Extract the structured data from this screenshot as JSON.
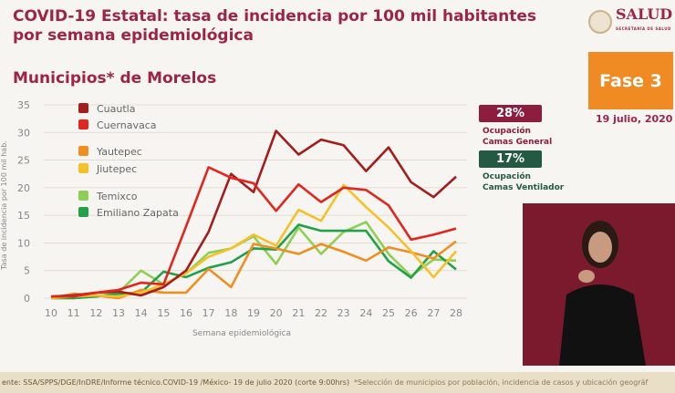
{
  "header": {
    "title": "COVID-19 Estatal: tasa de incidencia por 100 mil habitantes por semana epidemiológica",
    "subtitle": "Municipios* de Morelos"
  },
  "logo": {
    "name": "SALUD",
    "tagline": "SECRETARÍA DE SALUD"
  },
  "phase": {
    "label": "Fase 3",
    "date": "19 julio, 2020"
  },
  "occupancy": [
    {
      "value": "28%",
      "label1": "Ocupación",
      "label2": "Camas General",
      "color": "#8c1d3f"
    },
    {
      "value": "17%",
      "label1": "Ocupación",
      "label2": "Camas Ventilador",
      "color": "#245a44"
    }
  ],
  "footer": {
    "source": "ente: SSA/SPPS/DGE/InDRE/Informe técnico.COVID-19 /México- 19 de julio 2020 (corte 9:00hrs)",
    "note": "*Selección de municipios por población, incidencia de casos y ubicación geográf"
  },
  "chart_data": {
    "type": "line",
    "xlabel": "Semana epidemiológica",
    "ylabel": "Tasa de incidencia por 100 mil hab.",
    "x": [
      10,
      11,
      12,
      13,
      14,
      15,
      16,
      17,
      18,
      19,
      20,
      21,
      22,
      23,
      24,
      25,
      26,
      27,
      28
    ],
    "ylim": [
      0,
      35
    ],
    "yticks": [
      0,
      5,
      10,
      15,
      20,
      25,
      30,
      35
    ],
    "grid": true,
    "legend": "top-left",
    "series": [
      {
        "name": "Cuautla",
        "color": "#a31d1d",
        "values": [
          0.3,
          0.5,
          1,
          1.2,
          0.5,
          2,
          5,
          12,
          22.5,
          19.2,
          30.3,
          26,
          28.7,
          27.7,
          23,
          27.3,
          21,
          18.3,
          22
        ]
      },
      {
        "name": "Cuernavaca",
        "color": "#e0261f",
        "values": [
          0.3,
          0.3,
          1,
          1.5,
          2.8,
          2.5,
          13,
          23.7,
          21.8,
          20.8,
          15.8,
          20.6,
          17.4,
          20,
          19.6,
          16.8,
          10.6,
          11.5,
          12.6
        ]
      },
      {
        "name": "Yautepec",
        "color": "#ef8f22",
        "values": [
          0,
          0.8,
          0.5,
          0,
          1.5,
          1,
          1,
          5.3,
          2,
          9.8,
          9,
          8,
          9.8,
          8.4,
          6.8,
          9.2,
          8.3,
          7.2,
          10.3
        ]
      },
      {
        "name": "Jiutepec",
        "color": "#f5c12a",
        "values": [
          0,
          0.3,
          0.5,
          0.3,
          1,
          2.5,
          4.5,
          7.5,
          9,
          11.5,
          9.5,
          16,
          14,
          20.5,
          16.5,
          12.8,
          8.5,
          3.8,
          8.5
        ]
      },
      {
        "name": "Temixco",
        "color": "#8fcf55",
        "values": [
          0,
          0,
          0.3,
          1,
          5,
          2.5,
          4.5,
          8.2,
          9,
          11.2,
          6.2,
          12.8,
          8,
          12,
          13.8,
          8,
          4,
          7,
          6.8
        ]
      },
      {
        "name": "Emiliano Zapata",
        "color": "#22a04a",
        "values": [
          0,
          0,
          0.3,
          0.8,
          1,
          4.8,
          3.8,
          5.5,
          6.5,
          9,
          8.8,
          13.3,
          12.2,
          12.2,
          12.2,
          6.7,
          3.7,
          8.5,
          5.2
        ]
      }
    ]
  }
}
